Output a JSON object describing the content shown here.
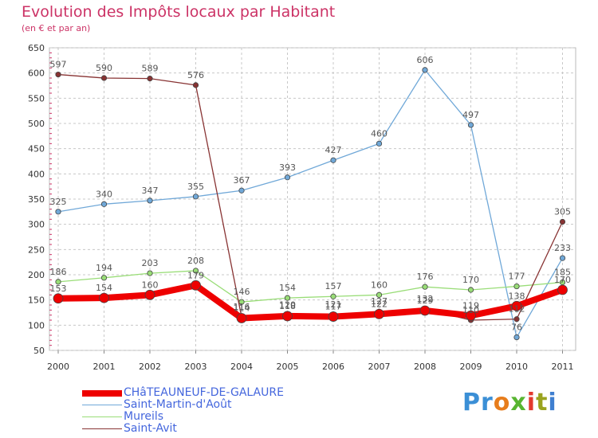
{
  "chart_data": {
    "type": "line",
    "title": "Evolution des Impôts locaux par Habitant",
    "subtitle": "(en € et par an)",
    "x": [
      "2000",
      "2001",
      "2002",
      "2003",
      "2004",
      "2005",
      "2006",
      "2007",
      "2008",
      "2009",
      "2010",
      "2011"
    ],
    "y_ticks": [
      "50",
      "100",
      "150",
      "200",
      "250",
      "300",
      "350",
      "400",
      "450",
      "500",
      "550",
      "600",
      "650"
    ],
    "ylim": [
      50,
      650
    ],
    "grid": true,
    "series": [
      {
        "name": "CHâTEAUNEUF-DE-GALAURE",
        "color": "#ee0000",
        "values": [
          153,
          154,
          160,
          179,
          114,
          118,
          117,
          122,
          129,
          119,
          138,
          170
        ],
        "labels": [
          "153",
          "154",
          "160",
          "179",
          "114",
          "118",
          "117",
          "122",
          "129",
          "119",
          "138",
          "170"
        ]
      },
      {
        "name": "Saint-Martin-d'Août",
        "color": "#70a8d8",
        "values": [
          325,
          340,
          347,
          355,
          367,
          393,
          427,
          460,
          606,
          497,
          76,
          233
        ],
        "labels": [
          "325",
          "340",
          "347",
          "355",
          "367",
          "393",
          "427",
          "460",
          "606",
          "497",
          "76",
          "233"
        ]
      },
      {
        "name": "Mureils",
        "color": "#99dd77",
        "values": [
          186,
          194,
          203,
          208,
          146,
          154,
          157,
          160,
          176,
          170,
          177,
          185
        ],
        "labels": [
          "186",
          "194",
          "203",
          "208",
          "146",
          "154",
          "157",
          "160",
          "176",
          "170",
          "177",
          "185"
        ]
      },
      {
        "name": "Saint-Avit",
        "color": "#883333",
        "values": [
          597,
          590,
          589,
          576,
          116,
          120,
          121,
          127,
          132,
          110,
          112,
          305
        ],
        "labels": [
          "597",
          "590",
          "589",
          "576",
          "116",
          "120",
          "121",
          "127",
          "132",
          "110",
          "112",
          "305"
        ]
      }
    ]
  },
  "brand": {
    "p1": "Pr",
    "p2": "o",
    "p3": "x",
    "p4": "i",
    "p5": "t",
    "p6": "i"
  }
}
